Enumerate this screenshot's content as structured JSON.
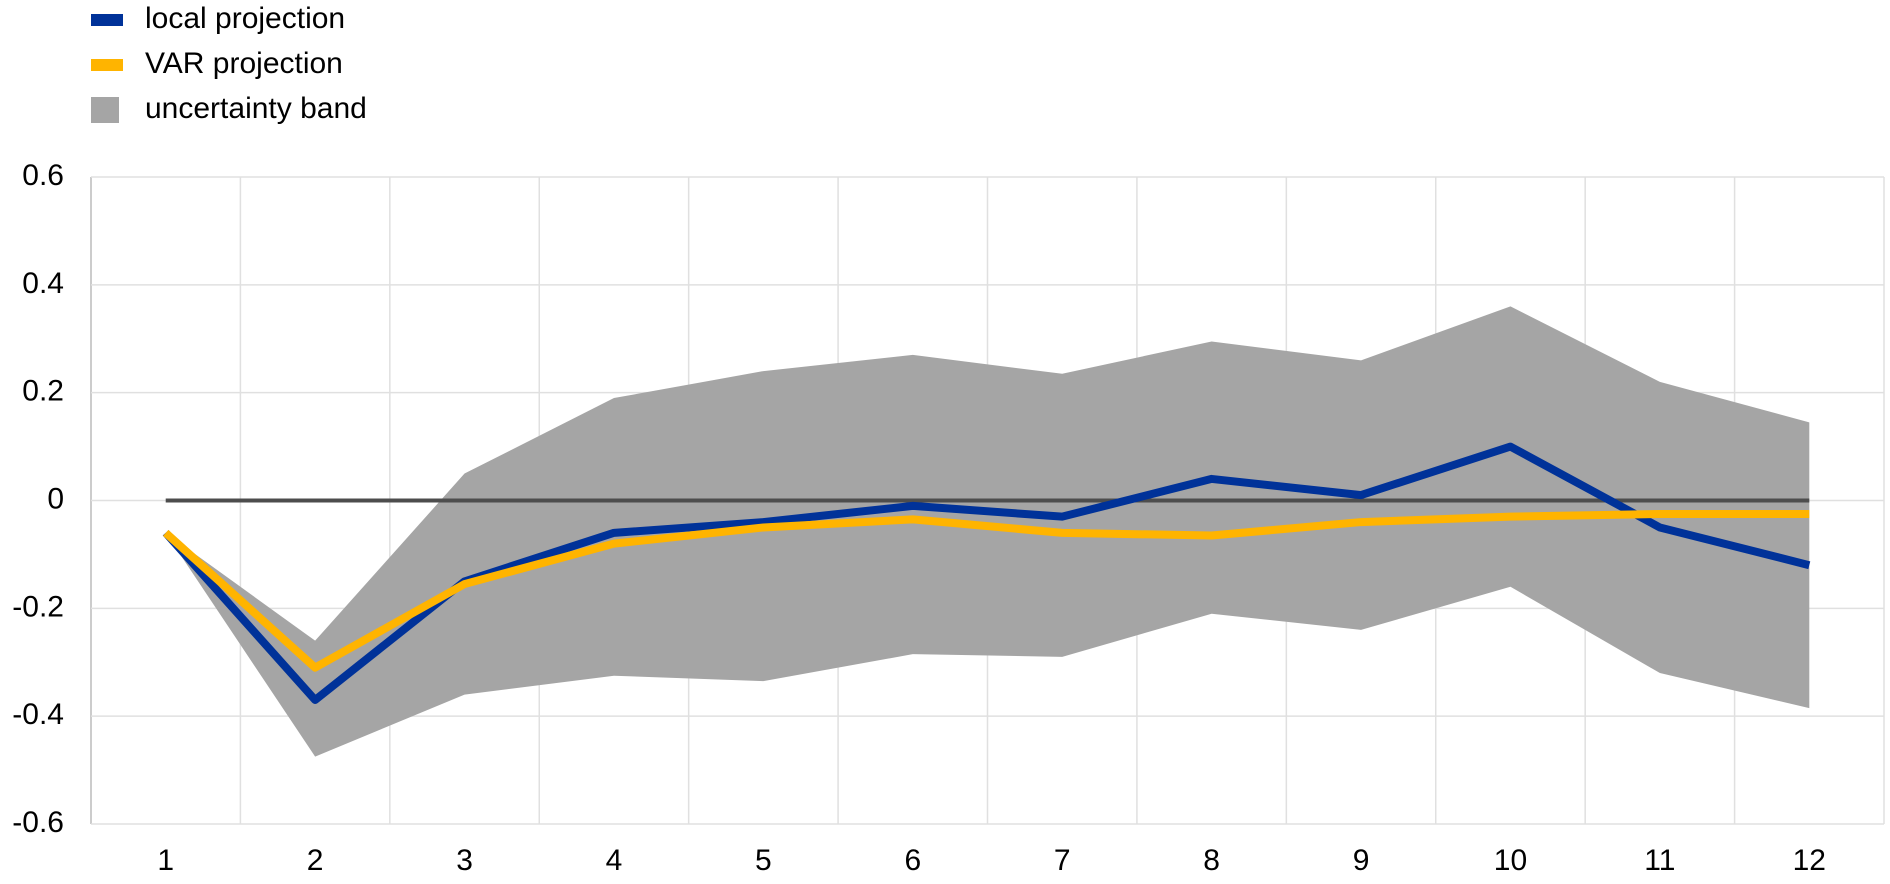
{
  "chart_data": {
    "type": "line",
    "categories": [
      "1",
      "2",
      "3",
      "4",
      "5",
      "6",
      "7",
      "8",
      "9",
      "10",
      "11",
      "12"
    ],
    "series": [
      {
        "name": "local projection",
        "color": "#003299",
        "values": [
          -0.06,
          -0.37,
          -0.15,
          -0.06,
          -0.04,
          -0.01,
          -0.03,
          0.04,
          0.01,
          0.1,
          -0.05,
          -0.12
        ]
      },
      {
        "name": "VAR projection",
        "color": "#ffb400",
        "values": [
          -0.06,
          -0.31,
          -0.155,
          -0.08,
          -0.05,
          -0.035,
          -0.06,
          -0.065,
          -0.04,
          -0.03,
          -0.025,
          -0.025
        ]
      }
    ],
    "band": {
      "name": "uncertainty band",
      "color": "#a5a5a5",
      "upper": [
        -0.06,
        -0.26,
        0.05,
        0.19,
        0.24,
        0.27,
        0.235,
        0.295,
        0.26,
        0.36,
        0.22,
        0.145
      ],
      "lower": [
        -0.06,
        -0.475,
        -0.36,
        -0.325,
        -0.335,
        -0.285,
        -0.29,
        -0.21,
        -0.24,
        -0.16,
        -0.32,
        -0.385
      ]
    },
    "ylim": [
      -0.6,
      0.6
    ],
    "yticks": [
      0.6,
      0.4,
      0.2,
      0,
      -0.2,
      -0.4,
      -0.6
    ],
    "grid": true
  }
}
